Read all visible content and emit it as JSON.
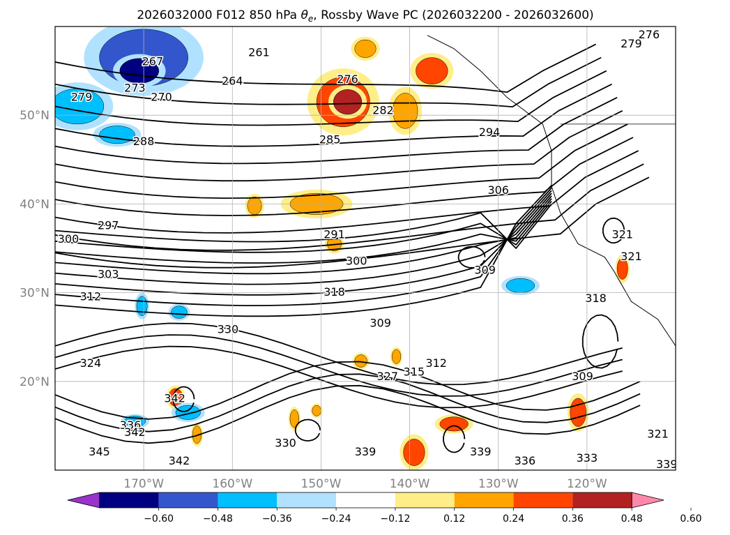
{
  "chart_data": {
    "type": "contour",
    "title": "2026032000 F012 850 hPa θe, Rossby Wave PC (2026032200 - 2026032600)",
    "title_prefix": "2026032000 F012 850 hPa ",
    "title_symbol": "θ",
    "title_symbol_sub": "e",
    "title_suffix": ", Rossby Wave PC (2026032200 - 2026032600)",
    "map": {
      "lon_range": [
        -180,
        -110
      ],
      "lat_range": [
        10,
        60
      ],
      "lon_ticks": [
        "170°W",
        "160°W",
        "150°W",
        "140°W",
        "130°W",
        "120°W"
      ],
      "lat_ticks": [
        "50°N",
        "40°N",
        "30°N",
        "20°N"
      ],
      "grid": true
    },
    "contour_field": "850 hPa theta-e",
    "contour_levels": [
      261,
      264,
      267,
      270,
      273,
      276,
      279,
      282,
      285,
      288,
      291,
      294,
      297,
      300,
      303,
      306,
      309,
      312,
      315,
      318,
      321,
      324,
      327,
      330,
      333,
      336,
      339,
      342,
      345
    ],
    "contour_labels": [
      {
        "text": "276",
        "lon": -113,
        "lat": 59
      },
      {
        "text": "279",
        "lon": -115,
        "lat": 58
      },
      {
        "text": "267",
        "lon": -169,
        "lat": 56
      },
      {
        "text": "261",
        "lon": -157,
        "lat": 57
      },
      {
        "text": "264",
        "lon": -160,
        "lat": 53.8
      },
      {
        "text": "276",
        "lon": -147,
        "lat": 54
      },
      {
        "text": "273",
        "lon": -171,
        "lat": 53
      },
      {
        "text": "270",
        "lon": -168,
        "lat": 52
      },
      {
        "text": "279",
        "lon": -177,
        "lat": 52
      },
      {
        "text": "282",
        "lon": -143,
        "lat": 50.5
      },
      {
        "text": "288",
        "lon": -170,
        "lat": 47
      },
      {
        "text": "285",
        "lon": -149,
        "lat": 47.2
      },
      {
        "text": "294",
        "lon": -131,
        "lat": 48
      },
      {
        "text": "306",
        "lon": -130,
        "lat": 41.5
      },
      {
        "text": "297",
        "lon": -174,
        "lat": 37.5
      },
      {
        "text": "291",
        "lon": -148.5,
        "lat": 36.5
      },
      {
        "text": "300",
        "lon": -178.5,
        "lat": 36
      },
      {
        "text": "321",
        "lon": -116,
        "lat": 36.5
      },
      {
        "text": "321",
        "lon": -115,
        "lat": 34
      },
      {
        "text": "303",
        "lon": -174,
        "lat": 32
      },
      {
        "text": "300",
        "lon": -146,
        "lat": 33.5
      },
      {
        "text": "309",
        "lon": -131.5,
        "lat": 32.5
      },
      {
        "text": "318",
        "lon": -148.5,
        "lat": 30
      },
      {
        "text": "312",
        "lon": -176,
        "lat": 29.5
      },
      {
        "text": "318",
        "lon": -119,
        "lat": 29.3
      },
      {
        "text": "309",
        "lon": -143.3,
        "lat": 26.5
      },
      {
        "text": "330",
        "lon": -160.5,
        "lat": 25.8
      },
      {
        "text": "312",
        "lon": -137,
        "lat": 22
      },
      {
        "text": "324",
        "lon": -176,
        "lat": 22
      },
      {
        "text": "315",
        "lon": -139.5,
        "lat": 21
      },
      {
        "text": "327",
        "lon": -142.5,
        "lat": 20.5
      },
      {
        "text": "309",
        "lon": -120.5,
        "lat": 20.5
      },
      {
        "text": "342",
        "lon": -166.5,
        "lat": 18
      },
      {
        "text": "336",
        "lon": -171.5,
        "lat": 15
      },
      {
        "text": "342",
        "lon": -171,
        "lat": 14.2
      },
      {
        "text": "345",
        "lon": -175,
        "lat": 12
      },
      {
        "text": "330",
        "lon": -154,
        "lat": 13
      },
      {
        "text": "339",
        "lon": -145,
        "lat": 12
      },
      {
        "text": "339",
        "lon": -132,
        "lat": 12
      },
      {
        "text": "336",
        "lon": -127,
        "lat": 11
      },
      {
        "text": "333",
        "lon": -120,
        "lat": 11.3
      },
      {
        "text": "321",
        "lon": -112,
        "lat": 14
      },
      {
        "text": "342",
        "lon": -166,
        "lat": 11
      },
      {
        "text": "339",
        "lon": -111,
        "lat": 10.6
      }
    ],
    "shading_field": "Rossby Wave PC",
    "colorbar": {
      "ticks": [
        "−0.60",
        "−0.48",
        "−0.36",
        "−0.24",
        "−0.12",
        "0.12",
        "0.24",
        "0.36",
        "0.48",
        "0.60"
      ],
      "tick_values": [
        -0.6,
        -0.48,
        -0.36,
        -0.24,
        -0.12,
        0.12,
        0.24,
        0.36,
        0.48,
        0.6
      ],
      "colors": [
        "#9933cc",
        "#000080",
        "#3356cc",
        "#00bfff",
        "#b0e2ff",
        "#ffffff",
        "#ffee88",
        "#ffa500",
        "#ff4500",
        "#b22222",
        "#ff88aa"
      ],
      "extend": "both"
    },
    "shaded_features": [
      {
        "sign": "negative",
        "level": 0.36,
        "lon": -170,
        "lat": 56.5,
        "rx": 5,
        "ry": 3.2
      },
      {
        "sign": "negative",
        "level": 0.48,
        "lon": -170.5,
        "lat": 55,
        "rx": 2.2,
        "ry": 1.4
      },
      {
        "sign": "negative",
        "level": 0.24,
        "lon": -177.5,
        "lat": 51,
        "rx": 3,
        "ry": 2
      },
      {
        "sign": "negative",
        "level": 0.24,
        "lon": -173,
        "lat": 47.8,
        "rx": 2,
        "ry": 1
      },
      {
        "sign": "positive",
        "level": 0.36,
        "lon": -147.5,
        "lat": 51.5,
        "rx": 3,
        "ry": 2.8
      },
      {
        "sign": "positive",
        "level": 0.48,
        "lon": -147,
        "lat": 51.5,
        "rx": 1.6,
        "ry": 1.4
      },
      {
        "sign": "positive",
        "level": 0.36,
        "lon": -137.5,
        "lat": 55,
        "rx": 1.8,
        "ry": 1.5
      },
      {
        "sign": "positive",
        "level": 0.24,
        "lon": -145,
        "lat": 57.5,
        "rx": 1.2,
        "ry": 1
      },
      {
        "sign": "positive",
        "level": 0.24,
        "lon": -140.5,
        "lat": 50.5,
        "rx": 1.4,
        "ry": 2
      },
      {
        "sign": "positive",
        "level": 0.24,
        "lon": -150.5,
        "lat": 40,
        "rx": 3,
        "ry": 1.2
      },
      {
        "sign": "positive",
        "level": 0.24,
        "lon": -157.5,
        "lat": 39.8,
        "rx": 0.8,
        "ry": 1
      },
      {
        "sign": "positive",
        "level": 0.24,
        "lon": -148.5,
        "lat": 35.5,
        "rx": 0.8,
        "ry": 0.8
      },
      {
        "sign": "positive",
        "level": 0.36,
        "lon": -116,
        "lat": 32.7,
        "rx": 0.6,
        "ry": 1.2
      },
      {
        "sign": "negative",
        "level": 0.24,
        "lon": -127.5,
        "lat": 30.8,
        "rx": 1.6,
        "ry": 0.8
      },
      {
        "sign": "negative",
        "level": 0.24,
        "lon": -166,
        "lat": 27.8,
        "rx": 0.9,
        "ry": 0.7
      },
      {
        "sign": "negative",
        "level": 0.24,
        "lon": -170.2,
        "lat": 28.5,
        "rx": 0.6,
        "ry": 1.1
      },
      {
        "sign": "positive",
        "level": 0.36,
        "lon": -166.4,
        "lat": 18.2,
        "rx": 0.8,
        "ry": 1
      },
      {
        "sign": "negative",
        "level": 0.24,
        "lon": -165,
        "lat": 16.5,
        "rx": 1.4,
        "ry": 0.8
      },
      {
        "sign": "negative",
        "level": 0.24,
        "lon": -171,
        "lat": 15.5,
        "rx": 1.2,
        "ry": 0.6
      },
      {
        "sign": "positive",
        "level": 0.36,
        "lon": -121,
        "lat": 16.5,
        "rx": 0.9,
        "ry": 1.6
      },
      {
        "sign": "positive",
        "level": 0.36,
        "lon": -135,
        "lat": 15.2,
        "rx": 1.6,
        "ry": 0.8
      },
      {
        "sign": "positive",
        "level": 0.36,
        "lon": -139.5,
        "lat": 12,
        "rx": 1.2,
        "ry": 1.5
      },
      {
        "sign": "positive",
        "level": 0.24,
        "lon": -145.5,
        "lat": 22.3,
        "rx": 0.7,
        "ry": 0.7
      },
      {
        "sign": "positive",
        "level": 0.24,
        "lon": -141.5,
        "lat": 22.8,
        "rx": 0.5,
        "ry": 0.8
      },
      {
        "sign": "positive",
        "level": 0.24,
        "lon": -164,
        "lat": 14,
        "rx": 0.5,
        "ry": 1
      },
      {
        "sign": "positive",
        "level": 0.24,
        "lon": -153,
        "lat": 15.8,
        "rx": 0.5,
        "ry": 1
      },
      {
        "sign": "positive",
        "level": 0.24,
        "lon": -150.5,
        "lat": 16.7,
        "rx": 0.5,
        "ry": 0.6
      }
    ],
    "colors": {
      "contour": "#000000",
      "grid": "#b0b0b0",
      "coast": "#000000",
      "tick_text": "#808080"
    }
  }
}
